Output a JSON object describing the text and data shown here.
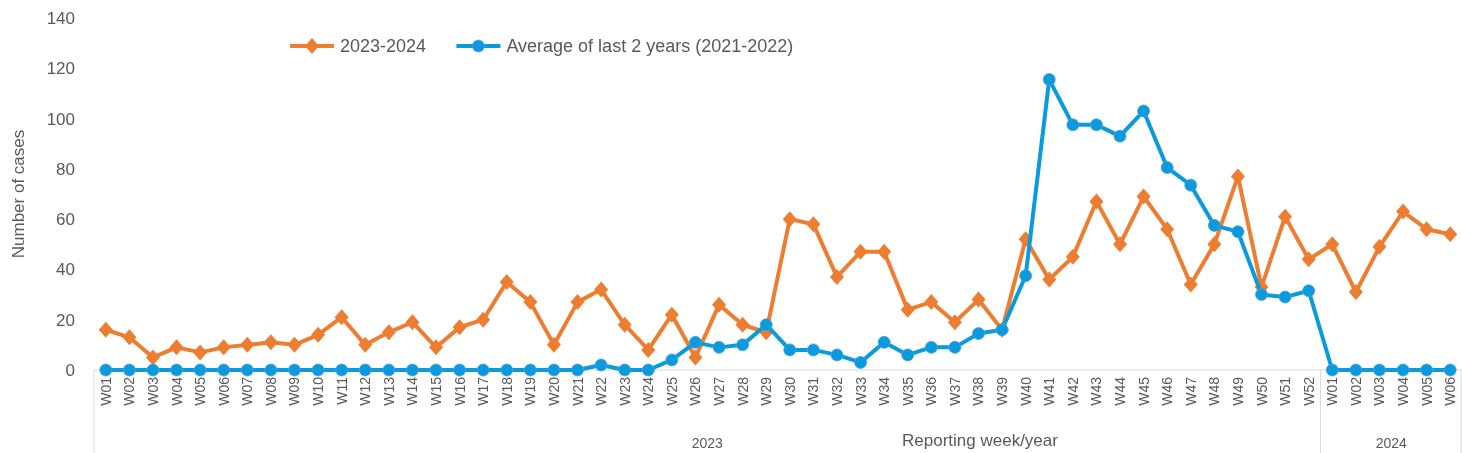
{
  "chart_data": {
    "type": "line",
    "xlabel": "Reporting week/year",
    "ylabel": "Number of cases",
    "categories": [
      "W01",
      "W02",
      "W03",
      "W04",
      "W05",
      "W06",
      "W07",
      "W08",
      "W09",
      "W10",
      "W11",
      "W12",
      "W13",
      "W14",
      "W15",
      "W16",
      "W17",
      "W18",
      "W19",
      "W20",
      "W21",
      "W22",
      "W23",
      "W24",
      "W25",
      "W26",
      "W27",
      "W28",
      "W29",
      "W30",
      "W31",
      "W32",
      "W33",
      "W34",
      "W35",
      "W36",
      "W37",
      "W38",
      "W39",
      "W40",
      "W41",
      "W42",
      "W43",
      "W44",
      "W45",
      "W46",
      "W47",
      "W48",
      "W49",
      "W50",
      "W51",
      "W52",
      "W01",
      "W02",
      "W03",
      "W04",
      "W05",
      "W06"
    ],
    "series": [
      {
        "name": "2023-2024",
        "color": "#ed7d31",
        "marker": "diamond",
        "values": [
          16,
          13,
          5,
          9,
          7,
          9,
          10,
          11,
          10,
          14,
          21,
          10,
          15,
          19,
          9,
          17,
          20,
          35,
          27,
          10,
          27,
          32,
          18,
          8,
          22,
          5,
          26,
          18,
          15,
          60,
          58,
          37,
          47,
          47,
          24,
          27,
          19,
          28,
          16,
          52,
          36,
          45,
          67,
          50,
          69,
          56,
          34,
          50,
          77,
          33,
          61,
          44,
          50,
          31,
          49,
          63,
          56,
          54
        ]
      },
      {
        "name": "Average of last 2 years (2021-2022)",
        "color": "#0a9ade",
        "marker": "circle",
        "values": [
          0,
          0,
          0,
          0,
          0,
          0,
          0,
          0,
          0,
          0,
          0,
          0,
          0,
          0,
          0,
          0,
          0,
          0,
          0,
          0,
          0,
          2,
          0,
          0,
          4,
          11,
          9,
          10,
          18,
          8,
          8,
          6,
          3,
          11,
          6,
          9,
          9,
          14.5,
          16,
          37.5,
          115.5,
          97.5,
          97.5,
          93,
          103,
          80.5,
          73.5,
          57.5,
          55,
          30,
          29,
          31.5,
          0,
          0,
          0,
          0,
          0,
          0
        ]
      }
    ],
    "ylim": [
      0,
      140
    ],
    "yticks": [
      0,
      20,
      40,
      60,
      80,
      100,
      120,
      140
    ],
    "grid": false,
    "legend": "top",
    "annotations": [
      "2023",
      "2024"
    ]
  }
}
